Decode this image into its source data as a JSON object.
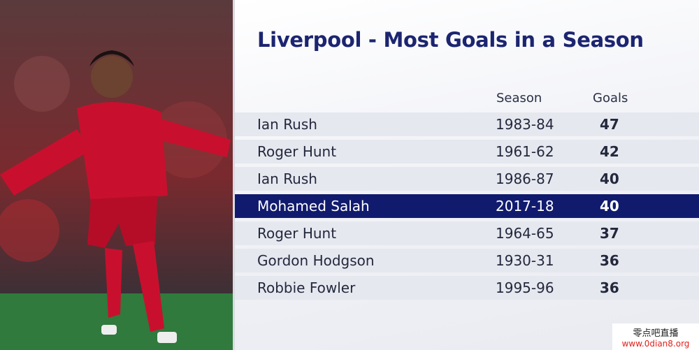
{
  "header": {
    "title": "Liverpool - Most Goals in a Season"
  },
  "table": {
    "columns": [
      null,
      "Season",
      "Goals"
    ],
    "rows": [
      [
        "Ian Rush",
        "1983-84",
        47
      ],
      [
        "Roger Hunt",
        "1961-62",
        42
      ],
      [
        "Ian Rush",
        "1986-87",
        40
      ],
      [
        "Mohamed Salah",
        "2017-18",
        40
      ],
      [
        "Roger Hunt",
        "1964-65",
        37
      ],
      [
        "Gordon Hodgson",
        "1930-31",
        36
      ],
      [
        "Robbie Fowler",
        "1995-96",
        36
      ]
    ]
  },
  "watermark": [
    "零点吧直播",
    "www.0dian8.org"
  ]
}
